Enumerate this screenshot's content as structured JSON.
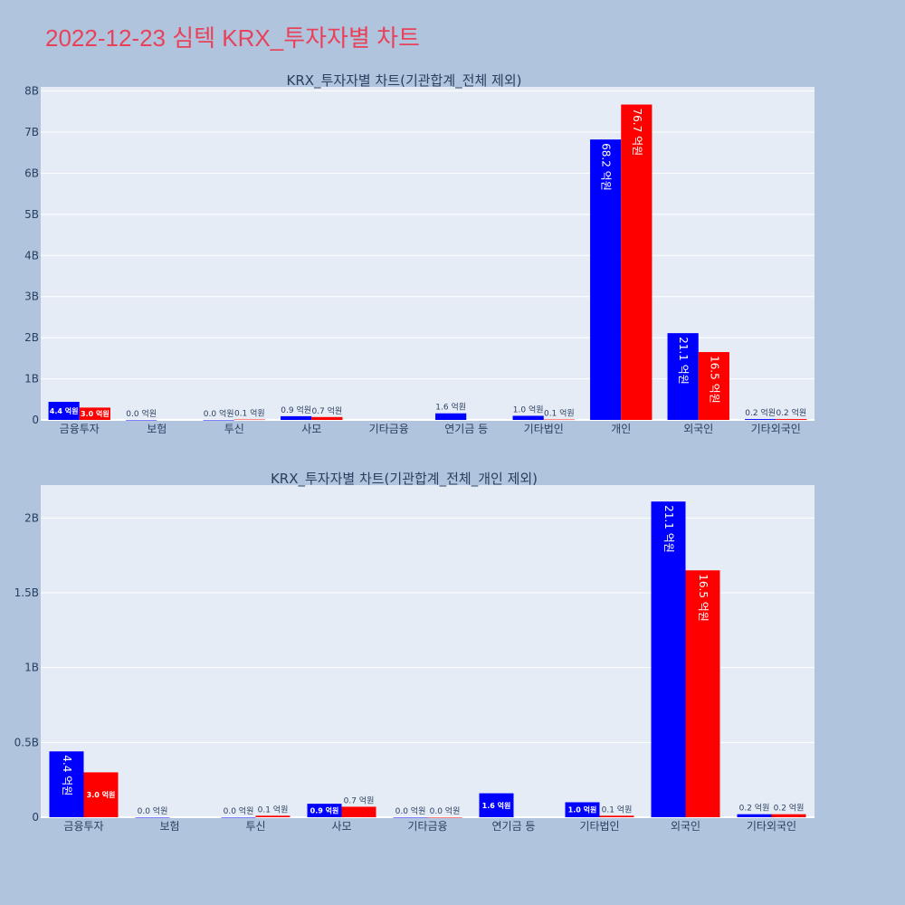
{
  "page": {
    "title": "2022-12-23 심텍 KRX_투자자별 차트"
  },
  "colors": {
    "buy": "#0000ff",
    "sell": "#ff0000",
    "plot_bg": "#e5ecf6",
    "page_bg": "#b0c4de",
    "grid": "#ffffff",
    "text": "#2a3f5f"
  },
  "chart_data": [
    {
      "type": "bar",
      "title": "KRX_투자자별 차트(기관합계_전체 제외)",
      "categories": [
        "금융투자",
        "보험",
        "투신",
        "사모",
        "기타금융",
        "연기금 등",
        "기타법인",
        "개인",
        "외국인",
        "기타외국인"
      ],
      "ylim": [
        0,
        8100000000
      ],
      "yticks": [
        0,
        1000000000,
        2000000000,
        3000000000,
        4000000000,
        5000000000,
        6000000000,
        7000000000,
        8000000000
      ],
      "ytick_labels": [
        "0",
        "1B",
        "2B",
        "3B",
        "4B",
        "5B",
        "6B",
        "7B",
        "8B"
      ],
      "grid": true,
      "series": [
        {
          "color": "#0000ff",
          "values": [
            440000000,
            0,
            0,
            90000000,
            null,
            160000000,
            100000000,
            6820000000,
            2110000000,
            20000000
          ],
          "labels": [
            "4.4 억원",
            "0.0 억원",
            "0.0 억원",
            "0.9 억원",
            "",
            "1.6 억원",
            "1.0 억원",
            "68.2 억원",
            "21.1 억원",
            "0.2 억원"
          ]
        },
        {
          "color": "#ff0000",
          "values": [
            300000000,
            null,
            10000000,
            70000000,
            null,
            null,
            10000000,
            7670000000,
            1650000000,
            20000000
          ],
          "labels": [
            "3.0 억원",
            "",
            "0.1 억원",
            "0.7 억원",
            "",
            "",
            "0.1 억원",
            "76.7 억원",
            "16.5 억원",
            "0.2 억원"
          ]
        }
      ]
    },
    {
      "type": "bar",
      "title": "KRX_투자자별 차트(기관합계_전체_개인 제외)",
      "categories": [
        "금융투자",
        "보험",
        "투신",
        "사모",
        "기타금융",
        "연기금 등",
        "기타법인",
        "외국인",
        "기타외국인"
      ],
      "ylim": [
        0,
        2220000000
      ],
      "yticks": [
        0,
        500000000,
        1000000000,
        1500000000,
        2000000000
      ],
      "ytick_labels": [
        "0",
        "0.5B",
        "1B",
        "1.5B",
        "2B"
      ],
      "grid": true,
      "series": [
        {
          "color": "#0000ff",
          "values": [
            440000000,
            0,
            0,
            90000000,
            0,
            160000000,
            100000000,
            2110000000,
            20000000
          ],
          "labels": [
            "4.4 억원",
            "0.0 억원",
            "0.0 억원",
            "0.9 억원",
            "0.0 억원",
            "1.6 억원",
            "1.0 억원",
            "21.1 억원",
            "0.2 억원"
          ]
        },
        {
          "color": "#ff0000",
          "values": [
            300000000,
            null,
            10000000,
            70000000,
            0,
            null,
            10000000,
            1650000000,
            20000000
          ],
          "labels": [
            "3.0 억원",
            "",
            "0.1 억원",
            "0.7 억원",
            "0.0 억원",
            "",
            "0.1 억원",
            "16.5 억원",
            "0.2 억원"
          ]
        }
      ]
    }
  ]
}
